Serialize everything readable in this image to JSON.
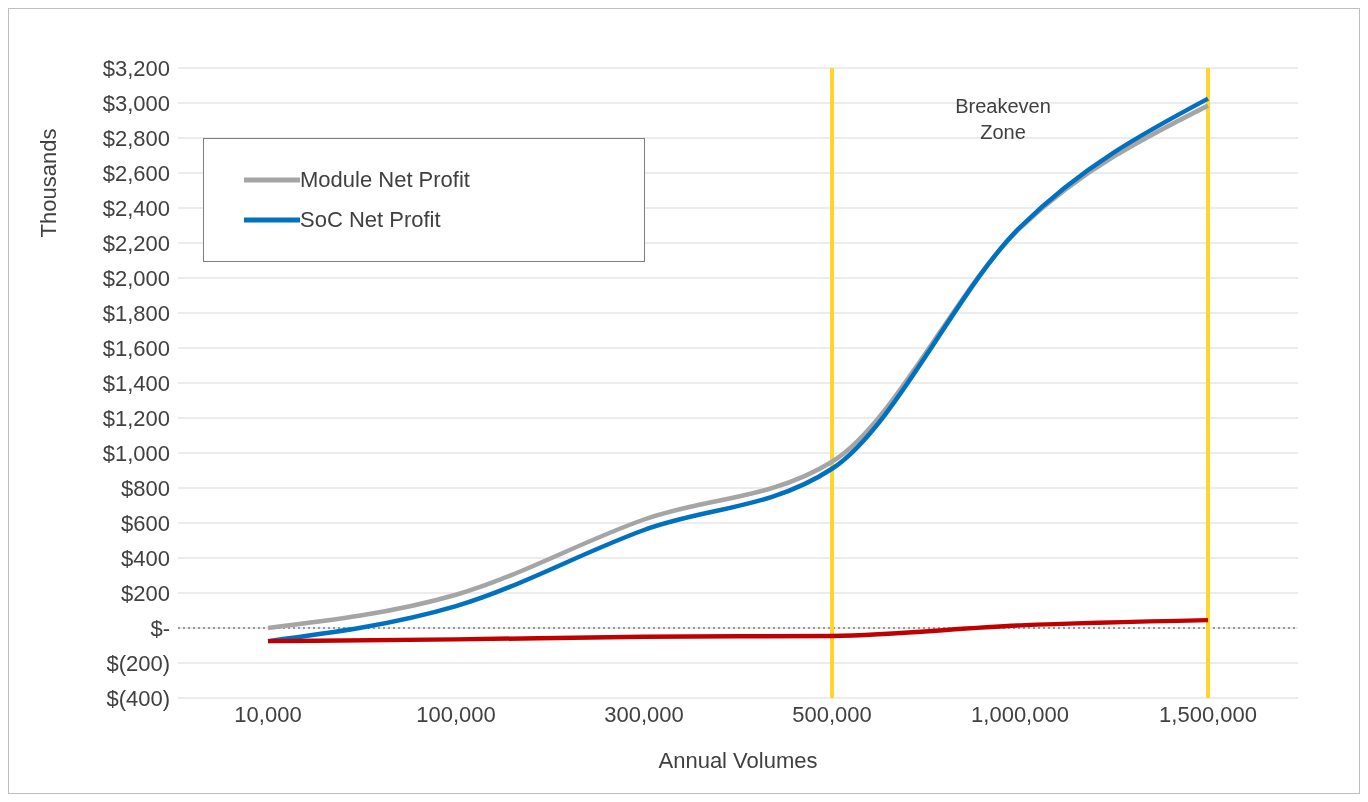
{
  "chart_data": {
    "type": "line",
    "xlabel": "Annual Volumes",
    "ylabel": "Thousands",
    "categories": [
      "10,000",
      "100,000",
      "300,000",
      "500,000",
      "1,000,000",
      "1,500,000"
    ],
    "series": [
      {
        "name": "Module Net Profit",
        "color": "#a5a5a5",
        "values": [
          0,
          190,
          620,
          950,
          2285,
          2985
        ]
      },
      {
        "name": "SoC Net Profit",
        "color": "#0070c0",
        "values": [
          -75,
          125,
          560,
          910,
          2290,
          3025
        ]
      },
      {
        "color": "#c00000",
        "values": [
          -75,
          -65,
          -50,
          -45,
          15,
          45
        ]
      }
    ],
    "ylim": [
      -400,
      3200
    ],
    "yticks": [
      {
        "value": -400,
        "label": "$(400)"
      },
      {
        "value": -200,
        "label": "$(200)"
      },
      {
        "value": 0,
        "label": "$-"
      },
      {
        "value": 200,
        "label": "$200"
      },
      {
        "value": 400,
        "label": "$400"
      },
      {
        "value": 600,
        "label": "$600"
      },
      {
        "value": 800,
        "label": "$800"
      },
      {
        "value": 1000,
        "label": "$1,000"
      },
      {
        "value": 1200,
        "label": "$1,200"
      },
      {
        "value": 1400,
        "label": "$1,400"
      },
      {
        "value": 1600,
        "label": "$1,600"
      },
      {
        "value": 1800,
        "label": "$1,800"
      },
      {
        "value": 2000,
        "label": "$2,000"
      },
      {
        "value": 2200,
        "label": "$2,200"
      },
      {
        "value": 2400,
        "label": "$2,400"
      },
      {
        "value": 2600,
        "label": "$2,600"
      },
      {
        "value": 2800,
        "label": "$2,800"
      },
      {
        "value": 3000,
        "label": "$3,000"
      },
      {
        "value": 3200,
        "label": "$3,200"
      }
    ],
    "ref_lines": [
      {
        "axis": "y",
        "value": 0,
        "color": "#7f7f7f",
        "line_style": "dotted"
      },
      {
        "axis": "x",
        "value": "500,000",
        "color": "#ffd52e",
        "line_style": "solid"
      },
      {
        "axis": "x",
        "value": "1,500,000",
        "color": "#ffd52e",
        "line_style": "solid"
      }
    ],
    "annotations": [
      "Breakeven\nZone"
    ],
    "grid": "y",
    "legend": "top left",
    "marker": "none",
    "line_style": "solid"
  }
}
